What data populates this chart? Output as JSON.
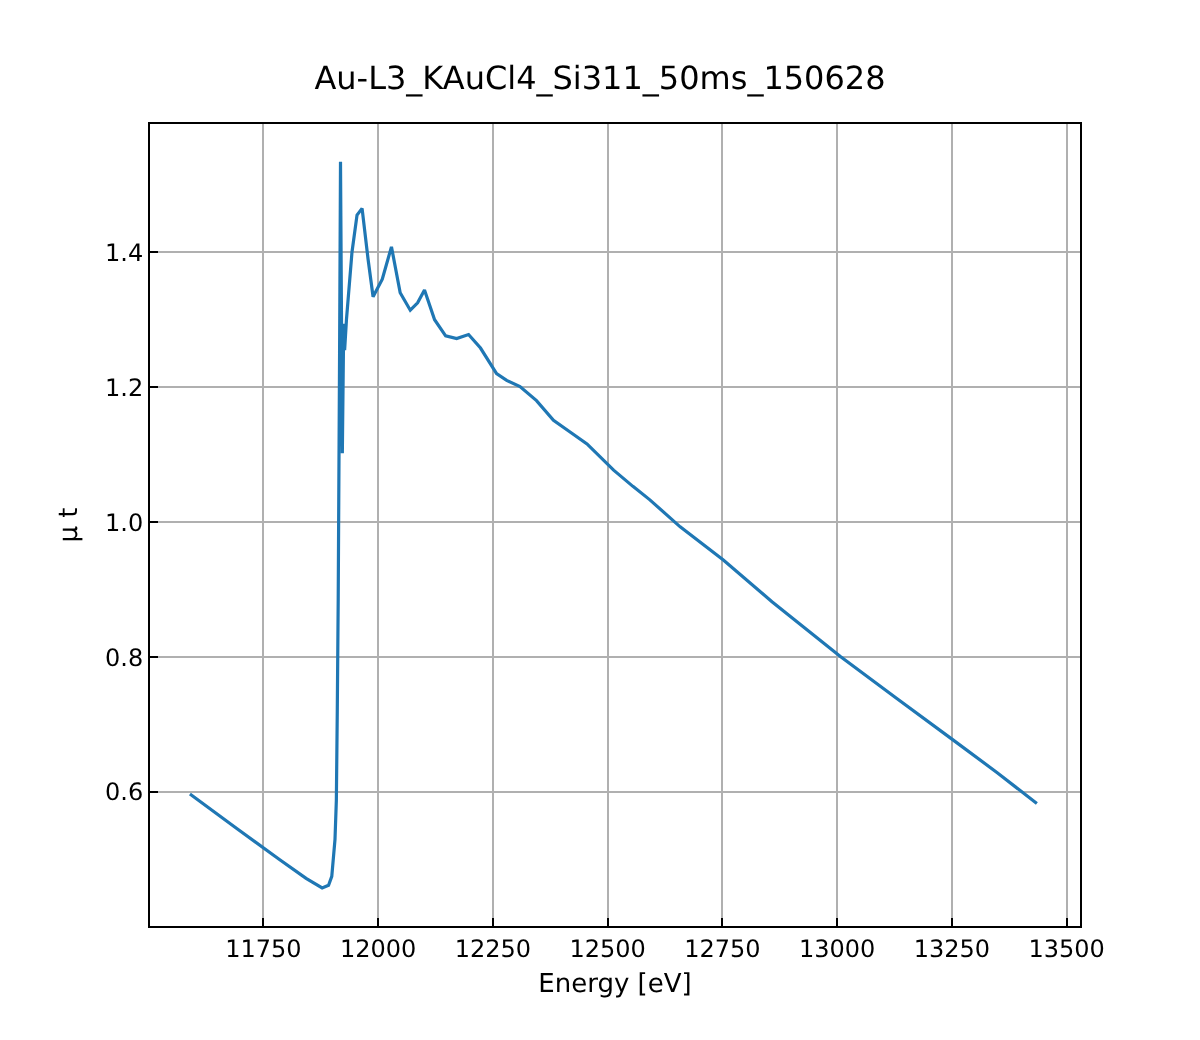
{
  "chart_data": {
    "type": "line",
    "title": "Au-L3_KAuCl4_Si311_50ms_150628",
    "xlabel": "Energy [eV]",
    "ylabel": "μ t",
    "x": [
      11590,
      11692,
      11785,
      11843,
      11878,
      11892,
      11899,
      11906,
      11909,
      11911,
      11913,
      11916,
      11918,
      11922,
      11925,
      11927,
      11931,
      11943,
      11954,
      11965,
      11978,
      11989,
      12009,
      12029,
      12048,
      12070,
      12086,
      12101,
      12123,
      12147,
      12171,
      12197,
      12223,
      12258,
      12280,
      12309,
      12345,
      12382,
      12415,
      12455,
      12513,
      12555,
      12592,
      12658,
      12752,
      12858,
      13007,
      13127,
      13253,
      13348,
      13435
    ],
    "series": [
      {
        "color": "#1f77b4",
        "values": [
          0.597,
          0.546,
          0.5,
          0.472,
          0.458,
          0.462,
          0.475,
          0.53,
          0.588,
          0.72,
          0.884,
          1.25,
          1.534,
          1.102,
          1.294,
          1.255,
          1.3,
          1.4,
          1.455,
          1.465,
          1.39,
          1.334,
          1.36,
          1.408,
          1.34,
          1.314,
          1.325,
          1.344,
          1.3,
          1.276,
          1.272,
          1.278,
          1.258,
          1.22,
          1.21,
          1.201,
          1.18,
          1.151,
          1.135,
          1.116,
          1.077,
          1.053,
          1.033,
          0.993,
          0.944,
          0.882,
          0.801,
          0.74,
          0.677,
          0.629,
          0.583
        ]
      }
    ],
    "xlim": [
      11503,
      13529
    ],
    "ylim": [
      0.4015,
      1.59
    ],
    "xticks": [
      11750,
      12000,
      12250,
      12500,
      12750,
      13000,
      13250,
      13500
    ],
    "yticks": [
      {
        "value": 0.6,
        "label": "0.6"
      },
      {
        "value": 0.8,
        "label": "0.8"
      },
      {
        "value": 1.0,
        "label": "1.0"
      },
      {
        "value": 1.2,
        "label": "1.2"
      },
      {
        "value": 1.4,
        "label": "1.4"
      }
    ],
    "grid": true,
    "marker": "none",
    "line_style": "solid"
  }
}
